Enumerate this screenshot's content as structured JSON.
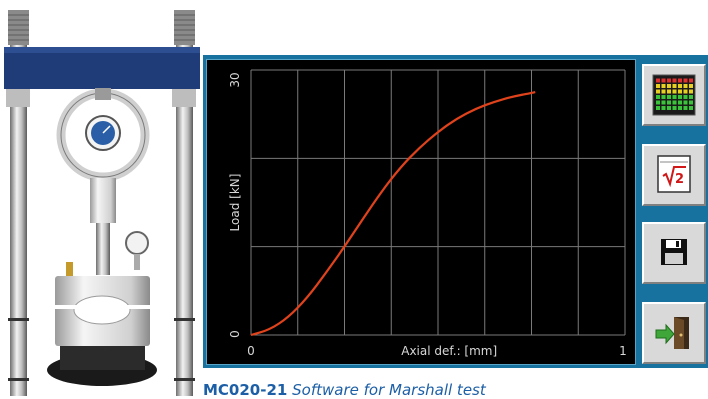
{
  "chart": {
    "y_axis_label": "Load [kN]",
    "x_axis_label": "Axial def.: [mm]",
    "y_tick_max": "30",
    "y_tick_min": "0",
    "x_tick_min": "0",
    "x_tick_max": "1"
  },
  "chart_data": {
    "type": "line",
    "title": "",
    "xlabel": "Axial def.: [mm]",
    "ylabel": "Load [kN]",
    "xlim": [
      0,
      1
    ],
    "ylim": [
      0,
      30
    ],
    "grid": true,
    "series": [
      {
        "color": "#e0431c",
        "x": [
          0,
          0.05,
          0.1,
          0.15,
          0.2,
          0.25,
          0.3,
          0.35,
          0.4,
          0.45,
          0.5,
          0.55,
          0.6,
          0.65,
          0.7,
          0.75,
          0.76
        ],
        "y": [
          0,
          0.6,
          2.0,
          4.2,
          7.0,
          10.0,
          13.2,
          16.3,
          19.0,
          21.2,
          23.0,
          24.5,
          25.6,
          26.4,
          27.0,
          27.4,
          27.5
        ]
      }
    ]
  },
  "toolbar": {
    "buttons": [
      {
        "name": "monitor",
        "icon": "level-meter-icon"
      },
      {
        "name": "calculator",
        "icon": "square-root-icon",
        "label": "√2"
      },
      {
        "name": "save",
        "icon": "floppy-disk-icon"
      },
      {
        "name": "exit",
        "icon": "exit-door-icon"
      }
    ]
  },
  "caption": {
    "code": "MC020-21",
    "text": "Software for Marshall test"
  },
  "colors": {
    "window_bg": "#1872a0",
    "chart_bg": "#000000",
    "curve": "#e0431c",
    "caption": "#1c5fa6"
  }
}
